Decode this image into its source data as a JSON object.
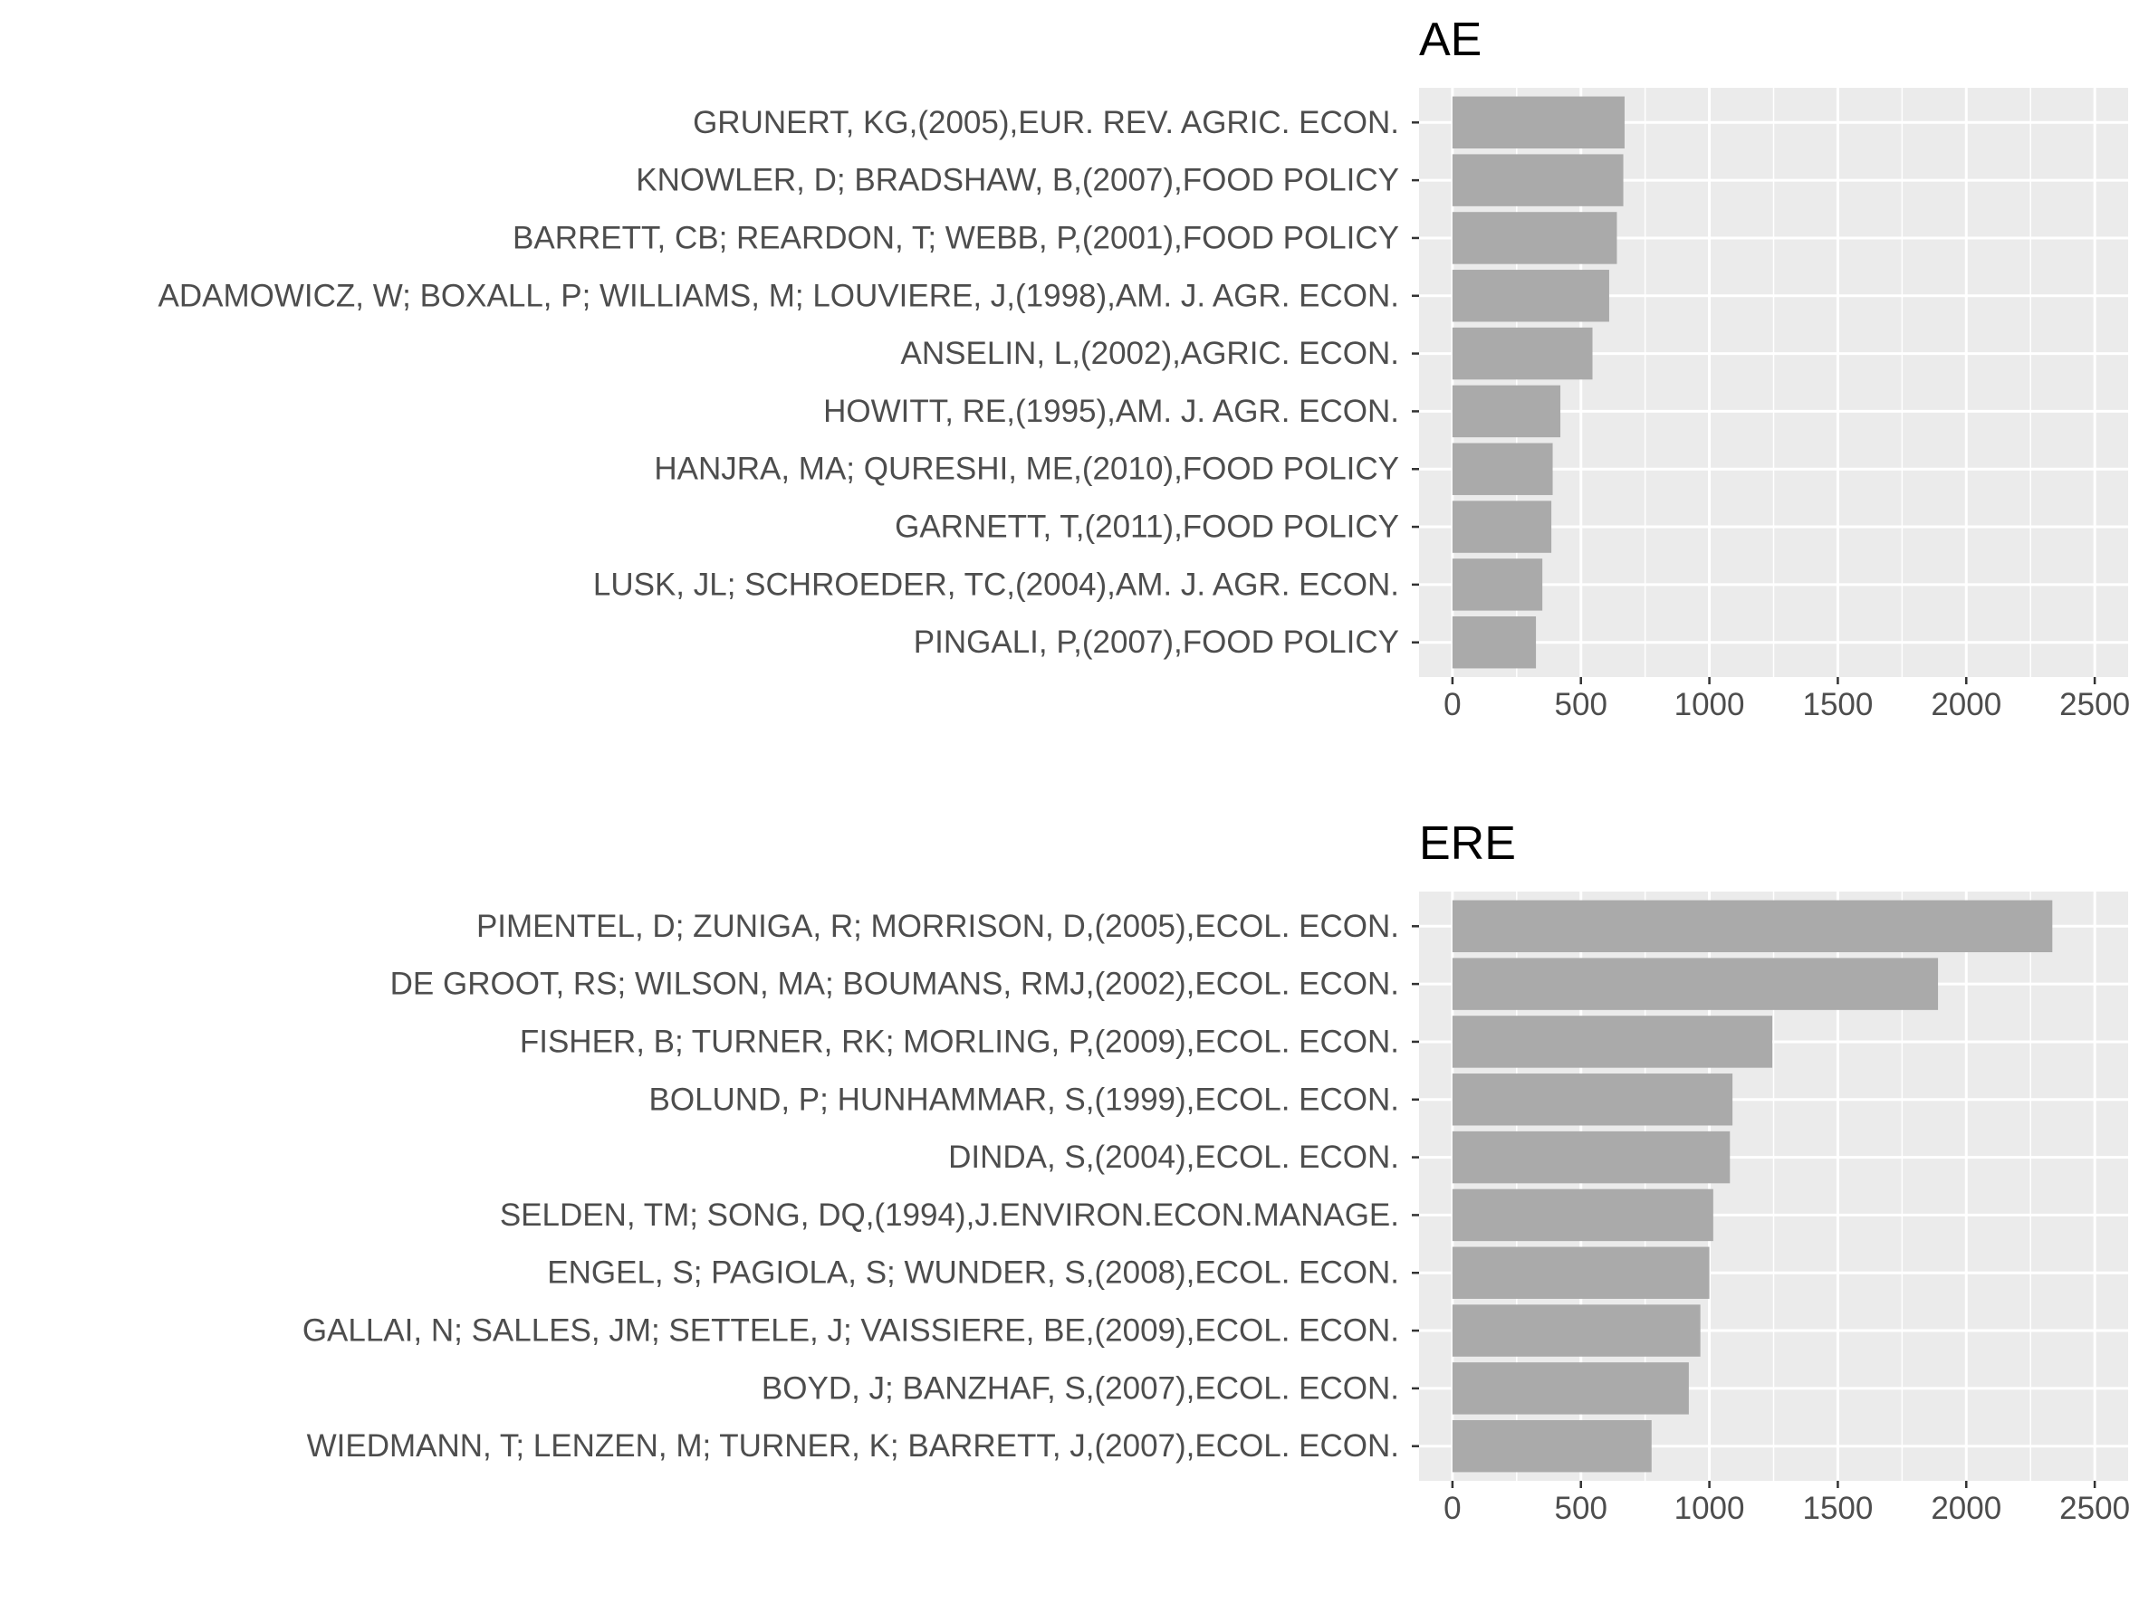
{
  "chart_data": [
    {
      "type": "bar",
      "orientation": "horizontal",
      "title": "AE",
      "xlabel": "",
      "ylabel": "",
      "xlim": [
        -130,
        2630
      ],
      "xticks": [
        0,
        500,
        1000,
        1500,
        2000,
        2500
      ],
      "grid": true,
      "categories": [
        "GRUNERT, KG,(2005),EUR. REV. AGRIC. ECON.",
        "KNOWLER, D; BRADSHAW, B,(2007),FOOD POLICY",
        "BARRETT, CB; REARDON, T; WEBB, P,(2001),FOOD POLICY",
        "ADAMOWICZ, W; BOXALL, P; WILLIAMS, M; LOUVIERE, J,(1998),AM. J. AGR. ECON.",
        "ANSELIN, L,(2002),AGRIC. ECON.",
        "HOWITT, RE,(1995),AM. J. AGR. ECON.",
        "HANJRA, MA; QURESHI, ME,(2010),FOOD POLICY",
        "GARNETT, T,(2011),FOOD POLICY",
        "LUSK, JL; SCHROEDER, TC,(2004),AM. J. AGR. ECON.",
        "PINGALI, P,(2007),FOOD POLICY"
      ],
      "values": [
        670,
        665,
        640,
        610,
        545,
        420,
        390,
        385,
        350,
        325
      ]
    },
    {
      "type": "bar",
      "orientation": "horizontal",
      "title": "ERE",
      "xlabel": "",
      "ylabel": "",
      "xlim": [
        -130,
        2630
      ],
      "xticks": [
        0,
        500,
        1000,
        1500,
        2000,
        2500
      ],
      "grid": true,
      "categories": [
        "PIMENTEL, D; ZUNIGA, R; MORRISON, D,(2005),ECOL. ECON.",
        "DE GROOT, RS; WILSON, MA; BOUMANS, RMJ,(2002),ECOL. ECON.",
        "FISHER, B; TURNER, RK; MORLING, P,(2009),ECOL. ECON.",
        "BOLUND, P; HUNHAMMAR, S,(1999),ECOL. ECON.",
        "DINDA, S,(2004),ECOL. ECON.",
        "SELDEN, TM; SONG, DQ,(1994),J.ENVIRON.ECON.MANAGE.",
        "ENGEL, S; PAGIOLA, S; WUNDER, S,(2008),ECOL. ECON.",
        "GALLAI, N; SALLES, JM; SETTELE, J; VAISSIERE, BE,(2009),ECOL. ECON.",
        "BOYD, J; BANZHAF, S,(2007),ECOL. ECON.",
        "WIEDMANN, T; LENZEN, M; TURNER, K; BARRETT, J,(2007),ECOL. ECON."
      ],
      "values": [
        2335,
        1890,
        1245,
        1090,
        1080,
        1015,
        1000,
        965,
        920,
        775
      ]
    }
  ]
}
